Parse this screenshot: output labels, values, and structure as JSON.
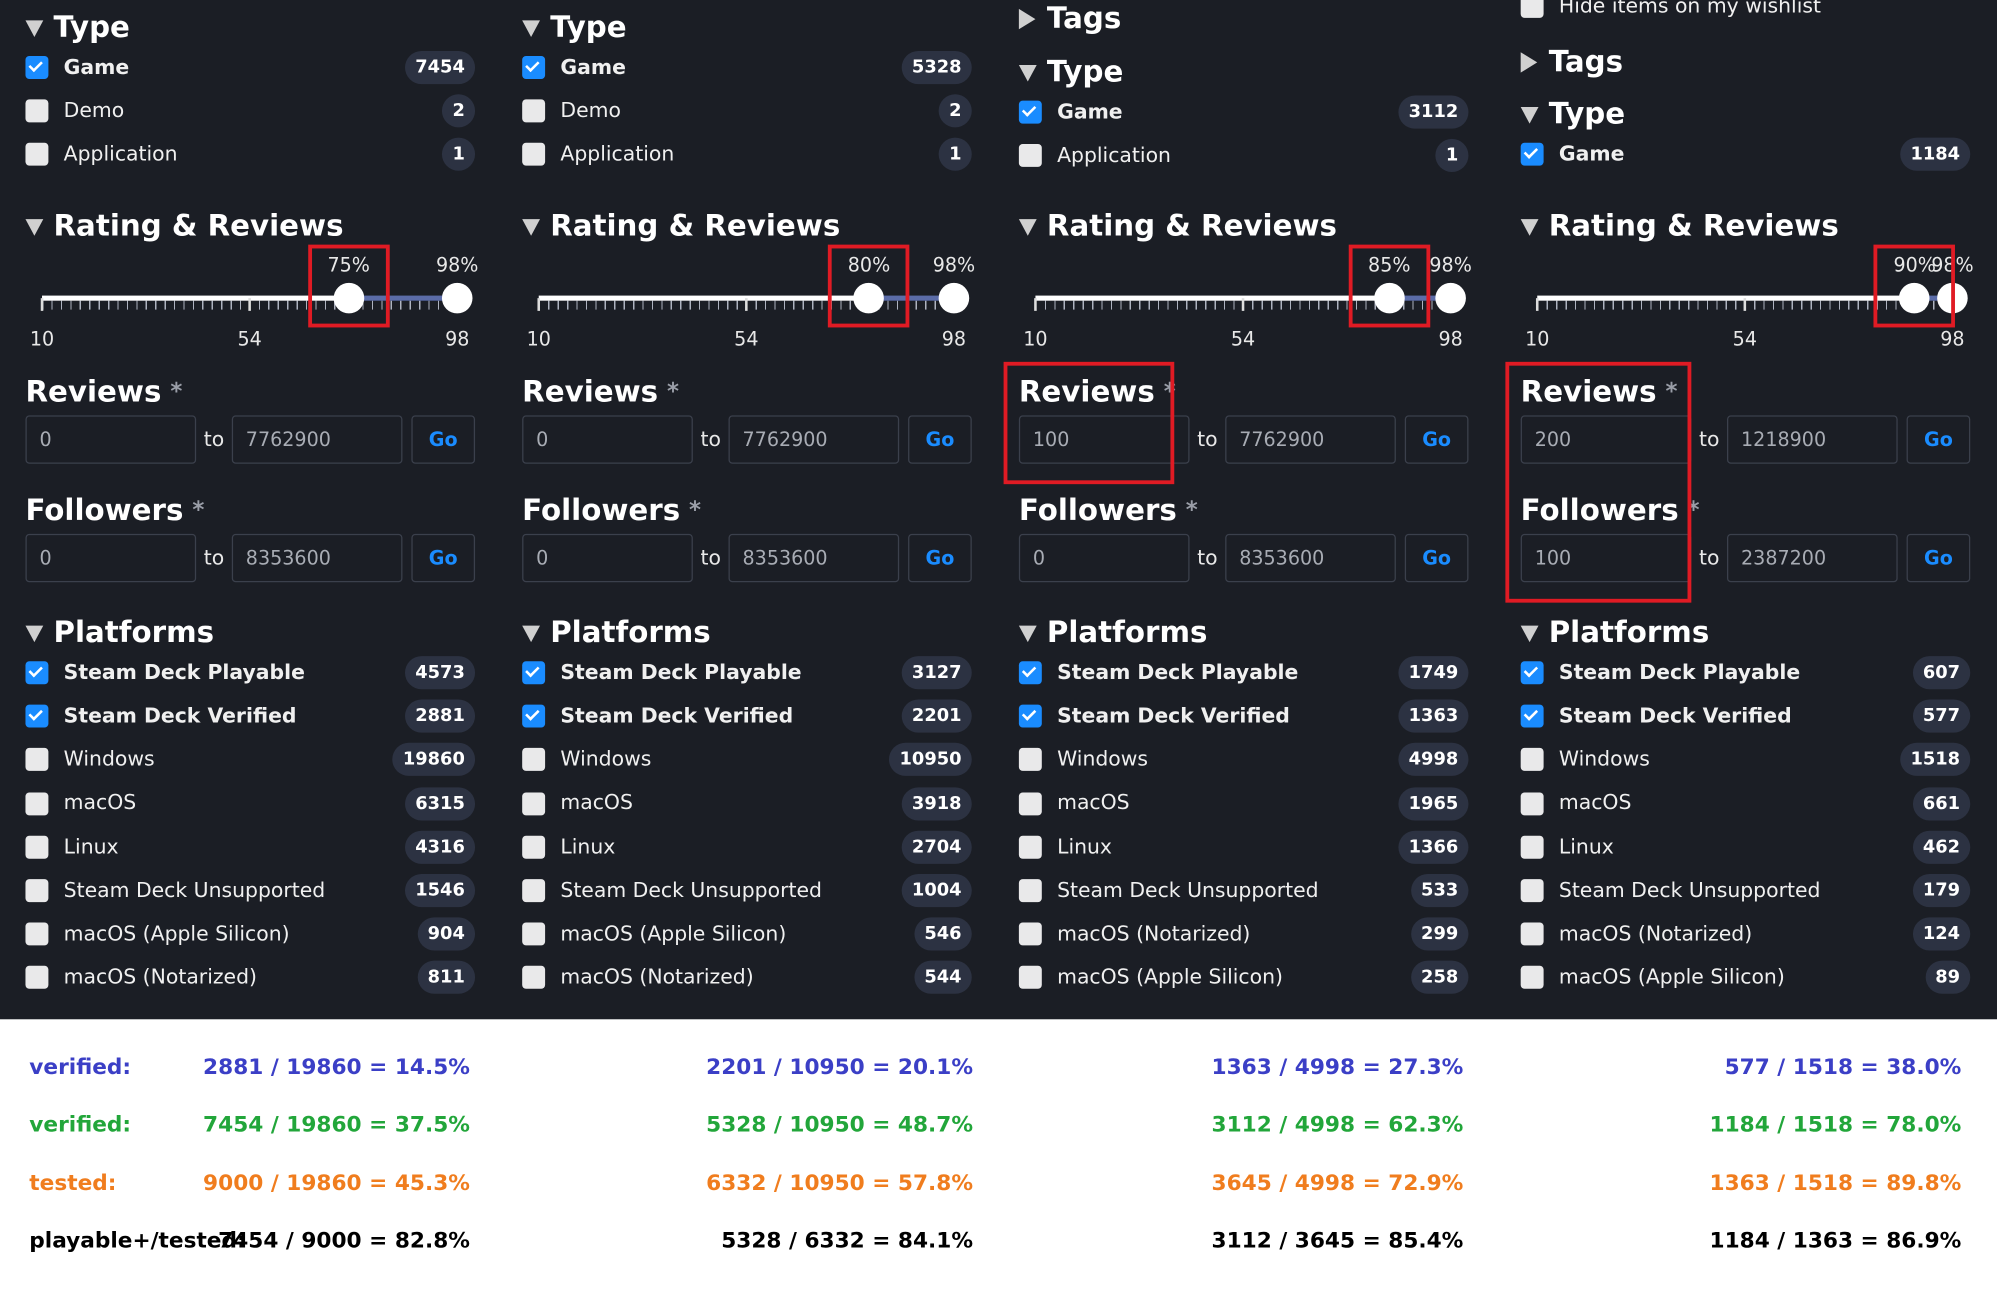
{
  "panels": [
    {
      "pre": [],
      "type": {
        "title": "Type",
        "items": [
          {
            "label": "Game",
            "count": "7454",
            "checked": true
          },
          {
            "label": "Demo",
            "count": "2",
            "checked": false
          },
          {
            "label": "Application",
            "count": "1",
            "checked": false
          }
        ]
      },
      "rating": {
        "title": "Rating & Reviews",
        "range": [
          10,
          98
        ],
        "ticks": [
          10,
          54,
          98
        ],
        "low": {
          "value": 75,
          "label": "75%"
        },
        "high": {
          "value": 98,
          "label": "98%"
        },
        "highlight": true
      },
      "reviews": {
        "title": "Reviews",
        "mark": "*",
        "from": "0",
        "to_word": "to",
        "to": "7762900",
        "go": "Go"
      },
      "followers": {
        "title": "Followers",
        "mark": "*",
        "from": "0",
        "to_word": "to",
        "to": "8353600",
        "go": "Go"
      },
      "highlight_filters": [],
      "platforms": {
        "title": "Platforms",
        "items": [
          {
            "label": "Steam Deck Playable",
            "count": "4573",
            "checked": true
          },
          {
            "label": "Steam Deck Verified",
            "count": "2881",
            "checked": true
          },
          {
            "label": "Windows",
            "count": "19860",
            "checked": false
          },
          {
            "label": "macOS",
            "count": "6315",
            "checked": false
          },
          {
            "label": "Linux",
            "count": "4316",
            "checked": false
          },
          {
            "label": "Steam Deck Unsupported",
            "count": "1546",
            "checked": false
          },
          {
            "label": "macOS (Apple Silicon)",
            "count": "904",
            "checked": false
          },
          {
            "label": "macOS (Notarized)",
            "count": "811",
            "checked": false
          }
        ]
      }
    },
    {
      "pre": [],
      "type": {
        "title": "Type",
        "items": [
          {
            "label": "Game",
            "count": "5328",
            "checked": true
          },
          {
            "label": "Demo",
            "count": "2",
            "checked": false
          },
          {
            "label": "Application",
            "count": "1",
            "checked": false
          }
        ]
      },
      "rating": {
        "title": "Rating & Reviews",
        "range": [
          10,
          98
        ],
        "ticks": [
          10,
          54,
          98
        ],
        "low": {
          "value": 80,
          "label": "80%"
        },
        "high": {
          "value": 98,
          "label": "98%"
        },
        "highlight": true
      },
      "reviews": {
        "title": "Reviews",
        "mark": "*",
        "from": "0",
        "to_word": "to",
        "to": "7762900",
        "go": "Go"
      },
      "followers": {
        "title": "Followers",
        "mark": "*",
        "from": "0",
        "to_word": "to",
        "to": "8353600",
        "go": "Go"
      },
      "highlight_filters": [],
      "platforms": {
        "title": "Platforms",
        "items": [
          {
            "label": "Steam Deck Playable",
            "count": "3127",
            "checked": true
          },
          {
            "label": "Steam Deck Verified",
            "count": "2201",
            "checked": true
          },
          {
            "label": "Windows",
            "count": "10950",
            "checked": false
          },
          {
            "label": "macOS",
            "count": "3918",
            "checked": false
          },
          {
            "label": "Linux",
            "count": "2704",
            "checked": false
          },
          {
            "label": "Steam Deck Unsupported",
            "count": "1004",
            "checked": false
          },
          {
            "label": "macOS (Apple Silicon)",
            "count": "546",
            "checked": false
          },
          {
            "label": "macOS (Notarized)",
            "count": "544",
            "checked": false
          }
        ]
      }
    },
    {
      "pre": [
        {
          "kind": "collapsed",
          "label": "Tags"
        }
      ],
      "type": {
        "title": "Type",
        "items": [
          {
            "label": "Game",
            "count": "3112",
            "checked": true
          },
          {
            "label": "Application",
            "count": "1",
            "checked": false
          }
        ]
      },
      "rating": {
        "title": "Rating & Reviews",
        "range": [
          10,
          98
        ],
        "ticks": [
          10,
          54,
          98
        ],
        "low": {
          "value": 85,
          "label": "85%"
        },
        "high": {
          "value": 98,
          "label": "98%"
        },
        "highlight": true
      },
      "reviews": {
        "title": "Reviews",
        "mark": "*",
        "from": "100",
        "to_word": "to",
        "to": "7762900",
        "go": "Go"
      },
      "followers": {
        "title": "Followers",
        "mark": "*",
        "from": "0",
        "to_word": "to",
        "to": "8353600",
        "go": "Go"
      },
      "highlight_filters": [
        "reviews"
      ],
      "platforms": {
        "title": "Platforms",
        "items": [
          {
            "label": "Steam Deck Playable",
            "count": "1749",
            "checked": true
          },
          {
            "label": "Steam Deck Verified",
            "count": "1363",
            "checked": true
          },
          {
            "label": "Windows",
            "count": "4998",
            "checked": false
          },
          {
            "label": "macOS",
            "count": "1965",
            "checked": false
          },
          {
            "label": "Linux",
            "count": "1366",
            "checked": false
          },
          {
            "label": "Steam Deck Unsupported",
            "count": "533",
            "checked": false
          },
          {
            "label": "macOS (Notarized)",
            "count": "299",
            "checked": false
          },
          {
            "label": "macOS (Apple Silicon)",
            "count": "258",
            "checked": false
          }
        ]
      }
    },
    {
      "pre": [
        {
          "kind": "checkbox",
          "label": "Hide items on my wishlist"
        },
        {
          "kind": "collapsed",
          "label": "Tags"
        }
      ],
      "type": {
        "title": "Type",
        "items": [
          {
            "label": "Game",
            "count": "1184",
            "checked": true
          }
        ]
      },
      "rating": {
        "title": "Rating & Reviews",
        "range": [
          10,
          98
        ],
        "ticks": [
          10,
          54,
          98
        ],
        "low": {
          "value": 90,
          "label": "90%"
        },
        "high": {
          "value": 98,
          "label": "98%"
        },
        "highlight": true
      },
      "reviews": {
        "title": "Reviews",
        "mark": "*",
        "from": "200",
        "to_word": "to",
        "to": "1218900",
        "go": "Go"
      },
      "followers": {
        "title": "Followers",
        "mark": "*",
        "from": "100",
        "to_word": "to",
        "to": "2387200",
        "go": "Go"
      },
      "highlight_filters": [
        "reviews",
        "followers"
      ],
      "platforms": {
        "title": "Platforms",
        "items": [
          {
            "label": "Steam Deck Playable",
            "count": "607",
            "checked": true
          },
          {
            "label": "Steam Deck Verified",
            "count": "577",
            "checked": true
          },
          {
            "label": "Windows",
            "count": "1518",
            "checked": false
          },
          {
            "label": "macOS",
            "count": "661",
            "checked": false
          },
          {
            "label": "Linux",
            "count": "462",
            "checked": false
          },
          {
            "label": "Steam Deck Unsupported",
            "count": "179",
            "checked": false
          },
          {
            "label": "macOS (Notarized)",
            "count": "124",
            "checked": false
          },
          {
            "label": "macOS (Apple Silicon)",
            "count": "89",
            "checked": false
          }
        ]
      }
    }
  ],
  "stats": {
    "rows": [
      {
        "label": "verified:",
        "color": "#3b3fc6",
        "values": [
          "2881 / 19860 = 14.5%",
          "2201 / 10950 = 20.1%",
          "1363 / 4998 = 27.3%",
          "577 / 1518 = 38.0%"
        ]
      },
      {
        "label": "verified:",
        "color": "#22a63a",
        "values": [
          "7454 / 19860 = 37.5%",
          "5328 / 10950 = 48.7%",
          "3112 / 4998 = 62.3%",
          "1184 / 1518 = 78.0%"
        ]
      },
      {
        "label": "tested:",
        "color": "#f07d1e",
        "values": [
          "9000 / 19860 = 45.3%",
          "6332 / 10950 = 57.8%",
          "3645 / 4998 = 72.9%",
          "1363 / 1518 = 89.8%"
        ]
      },
      {
        "label": "playable+/tested:",
        "color": "#000000",
        "values": [
          "7454 / 9000 = 82.8%",
          "5328 / 6332 = 84.1%",
          "3112 / 3645 = 85.4%",
          "1184 / 1363 = 86.9%"
        ]
      }
    ]
  }
}
